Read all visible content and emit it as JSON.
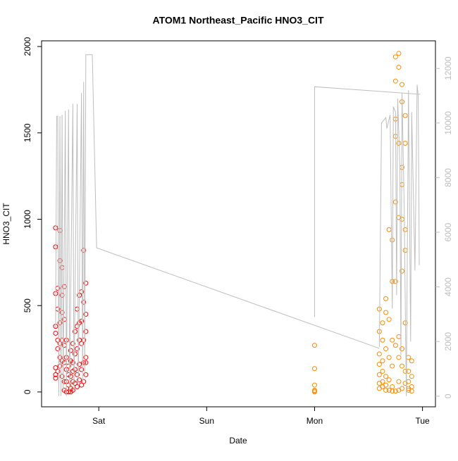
{
  "chart_data": {
    "type": "scatter",
    "title": "ATOM1 Northeast_Pacific HNO3_CIT",
    "x_label": "Date",
    "y_label": "HNO3_CIT",
    "xlim": [
      0.47,
      4.12
    ],
    "ylim": [
      -86,
      2033
    ],
    "y2lim": [
      -390,
      13010
    ],
    "xticks": [
      {
        "value": 1,
        "label": "Sat"
      },
      {
        "value": 2,
        "label": "Sun"
      },
      {
        "value": 3,
        "label": "Mon"
      },
      {
        "value": 4,
        "label": "Tue"
      }
    ],
    "yticks": [
      0,
      500,
      1000,
      1500,
      2000
    ],
    "y2ticks": [
      0,
      2000,
      4000,
      6000,
      8000,
      10000,
      12000
    ],
    "series": [
      {
        "color": "#ff0000",
        "x": [
          0.6,
          0.6,
          0.6,
          0.6,
          0.6,
          0.6,
          0.6,
          0.6,
          0.62,
          0.62,
          0.62,
          0.62,
          0.62,
          0.64,
          0.64,
          0.64,
          0.64,
          0.64,
          0.64,
          0.66,
          0.66,
          0.66,
          0.66,
          0.66,
          0.66,
          0.68,
          0.68,
          0.68,
          0.68,
          0.68,
          0.68,
          0.7,
          0.7,
          0.7,
          0.7,
          0.7,
          0.72,
          0.72,
          0.72,
          0.72,
          0.74,
          0.74,
          0.74,
          0.74,
          0.74,
          0.76,
          0.76,
          0.76,
          0.76,
          0.76,
          0.78,
          0.78,
          0.78,
          0.78,
          0.8,
          0.8,
          0.8,
          0.8,
          0.8,
          0.82,
          0.82,
          0.82,
          0.82,
          0.82,
          0.84,
          0.84,
          0.84,
          0.84,
          0.84,
          0.86,
          0.86,
          0.86,
          0.86,
          0.86,
          0.88,
          0.88,
          0.88,
          0.88,
          0.88,
          0.88
        ],
        "values": [
          950,
          840,
          570,
          380,
          340,
          140,
          100,
          80,
          600,
          480,
          300,
          250,
          120,
          935,
          760,
          400,
          280,
          200,
          150,
          720,
          560,
          460,
          300,
          180,
          90,
          610,
          420,
          270,
          170,
          60,
          10,
          300,
          200,
          130,
          60,
          0,
          150,
          100,
          40,
          0,
          240,
          180,
          90,
          20,
          0,
          280,
          170,
          120,
          60,
          10,
          350,
          220,
          130,
          50,
          480,
          380,
          250,
          100,
          30,
          560,
          400,
          300,
          160,
          70,
          580,
          410,
          280,
          130,
          40,
          820,
          520,
          300,
          170,
          60,
          630,
          450,
          350,
          200,
          170,
          100
        ]
      },
      {
        "color": "#ff8c00",
        "x": [
          3.0,
          3.0,
          3.0,
          3.0,
          3.0,
          3.0,
          3.6,
          3.6,
          3.6,
          3.6,
          3.6,
          3.6,
          3.6,
          3.63,
          3.63,
          3.63,
          3.63,
          3.63,
          3.63,
          3.66,
          3.66,
          3.66,
          3.66,
          3.66,
          3.66,
          3.69,
          3.69,
          3.69,
          3.69,
          3.69,
          3.72,
          3.72,
          3.72,
          3.72,
          3.72,
          3.72,
          3.75,
          3.75,
          3.75,
          3.75,
          3.75,
          3.75,
          3.75,
          3.75,
          3.78,
          3.78,
          3.78,
          3.78,
          3.78,
          3.78,
          3.78,
          3.78,
          3.81,
          3.81,
          3.81,
          3.81,
          3.81,
          3.81,
          3.81,
          3.81,
          3.81,
          3.84,
          3.84,
          3.84,
          3.84,
          3.84,
          3.84,
          3.84,
          3.87,
          3.87,
          3.87,
          3.87,
          3.87,
          3.9,
          3.9,
          3.9,
          3.9
        ],
        "values": [
          270,
          135,
          40,
          10,
          5,
          0,
          480,
          350,
          220,
          160,
          100,
          50,
          20,
          400,
          300,
          180,
          120,
          60,
          30,
          540,
          460,
          250,
          90,
          40,
          10,
          940,
          420,
          200,
          70,
          10,
          880,
          640,
          300,
          150,
          30,
          5,
          1940,
          1800,
          1580,
          1480,
          1100,
          640,
          270,
          5,
          1960,
          1880,
          1440,
          1010,
          320,
          200,
          60,
          10,
          1780,
          1680,
          1300,
          1200,
          1000,
          700,
          250,
          150,
          20,
          1600,
          1440,
          940,
          820,
          400,
          120,
          50,
          200,
          120,
          60,
          20,
          10,
          180,
          90,
          30,
          5
        ]
      },
      {
        "color": "#bebebe",
        "axis": "y2",
        "mode": "line",
        "x": [
          0.6,
          0.61,
          0.62,
          0.63,
          0.64,
          0.65,
          0.66,
          0.67,
          0.69,
          0.7,
          0.72,
          0.73,
          0.76,
          0.77,
          0.8,
          0.81,
          0.84,
          0.85,
          0.86,
          0.87,
          0.88,
          0.94,
          0.98,
          3.6,
          null,
          3.0,
          3.0,
          3.0,
          3.98,
          null,
          3.6,
          3.62,
          3.66,
          3.67,
          3.7,
          3.72,
          3.73,
          3.75,
          3.76,
          3.77,
          3.79,
          3.8,
          3.81,
          3.83,
          3.85,
          3.87,
          3.89,
          3.9,
          3.93,
          3.95,
          3.96,
          3.97
        ],
        "values": [
          2500,
          10250,
          10250,
          0,
          10250,
          0,
          10300,
          200,
          10450,
          0,
          10500,
          100,
          10700,
          200,
          10700,
          300,
          11100,
          500,
          11500,
          700,
          12500,
          12500,
          5430,
          1750,
          null,
          2900,
          7000,
          11330,
          11050,
          null,
          1800,
          10000,
          10200,
          9800,
          10300,
          3200,
          10600,
          10400,
          3700,
          10900,
          8500,
          1500,
          11100,
          7000,
          0,
          11200,
          2000,
          10400,
          4600,
          11400,
          11000,
          4800
        ]
      }
    ]
  }
}
